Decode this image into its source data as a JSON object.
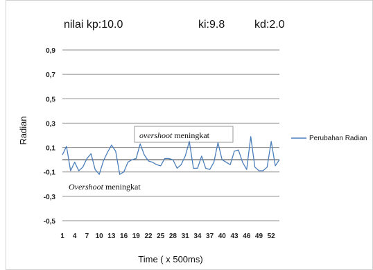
{
  "header": {
    "kp_label": "nilai kp:10.0",
    "ki_label": "ki:9.8",
    "kd_label": "kd:2.0"
  },
  "chart_data": {
    "type": "line",
    "title": "",
    "xlabel": "Time ( x 500ms)",
    "ylabel": "Radian",
    "ylim": [
      -0.5,
      0.9
    ],
    "yticks": [
      "0,9",
      "0,7",
      "0,5",
      "0,3",
      "0,1",
      "-0,1",
      "-0,3",
      "-0,5"
    ],
    "ytick_values": [
      0.9,
      0.7,
      0.5,
      0.3,
      0.1,
      -0.1,
      -0.3,
      -0.5
    ],
    "xticks": [
      "1",
      "4",
      "7",
      "10",
      "13",
      "16",
      "19",
      "22",
      "25",
      "28",
      "31",
      "34",
      "37",
      "40",
      "43",
      "46",
      "49",
      "52"
    ],
    "x": [
      1,
      2,
      3,
      4,
      5,
      6,
      7,
      8,
      9,
      10,
      11,
      12,
      13,
      14,
      15,
      16,
      17,
      18,
      19,
      20,
      21,
      22,
      23,
      24,
      25,
      26,
      27,
      28,
      29,
      30,
      31,
      32,
      33,
      34,
      35,
      36,
      37,
      38,
      39,
      40,
      41,
      42,
      43,
      44,
      45,
      46,
      47,
      48,
      49,
      50,
      51,
      52,
      53,
      54
    ],
    "grid": true,
    "legend_position": "right",
    "series": [
      {
        "name": "Perubahan Radian",
        "color": "#4a7ebb",
        "values": [
          0.04,
          0.11,
          -0.09,
          -0.02,
          -0.09,
          -0.06,
          0.01,
          0.05,
          -0.08,
          -0.12,
          -0.01,
          0.06,
          0.12,
          0.07,
          -0.12,
          -0.1,
          -0.02,
          0.0,
          0.01,
          0.13,
          0.04,
          -0.01,
          -0.02,
          -0.04,
          -0.05,
          0.01,
          0.01,
          0.0,
          -0.07,
          -0.04,
          0.03,
          0.15,
          -0.07,
          -0.07,
          0.03,
          -0.07,
          -0.08,
          -0.02,
          0.14,
          0.0,
          -0.02,
          -0.04,
          0.07,
          0.08,
          -0.02,
          -0.08,
          0.19,
          -0.06,
          -0.09,
          -0.09,
          -0.06,
          0.15,
          -0.05,
          0.0
        ]
      }
    ],
    "annotations": [
      {
        "emphasis": "overshoot",
        "rest": " meningkat",
        "boxed": true
      },
      {
        "emphasis": "Overshoot",
        "rest": " meningkat",
        "boxed": false
      }
    ],
    "reference_line_value": 0.0,
    "reference_line_color": "#555555"
  }
}
